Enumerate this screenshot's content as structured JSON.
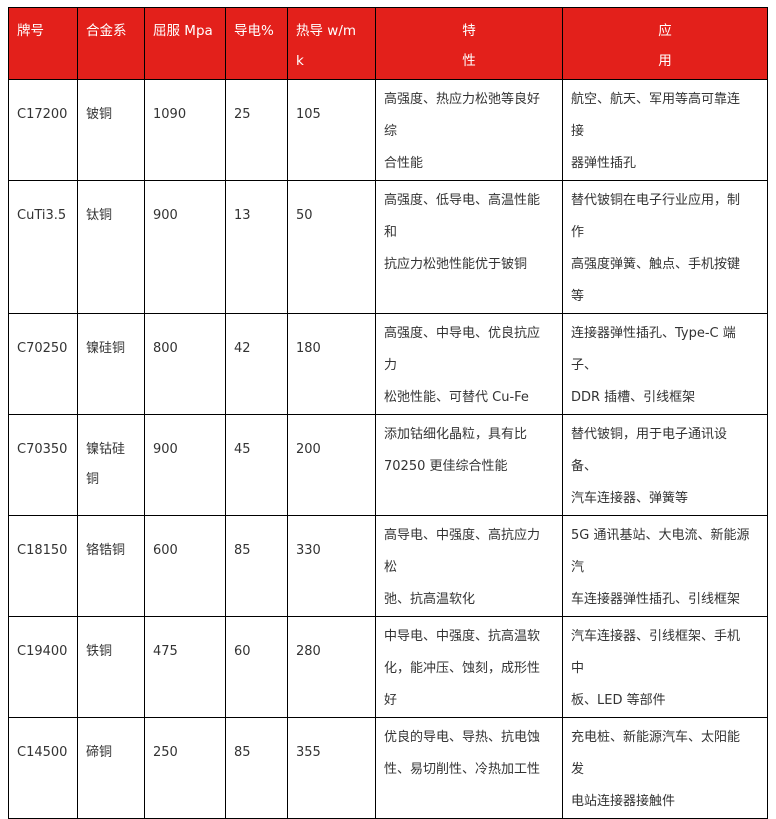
{
  "table": {
    "headers": [
      [
        "牌号"
      ],
      [
        "合金系"
      ],
      [
        "屈服  Mpa"
      ],
      [
        "导电%"
      ],
      [
        "热导   w/m",
        "k"
      ],
      [
        "特",
        "性"
      ],
      [
        "应",
        "用"
      ]
    ],
    "header_color": "#e3201b",
    "rows": [
      {
        "grade": "C17200",
        "alloy": [
          "铍铜"
        ],
        "yield": "1090",
        "conductivity": "25",
        "thermal": "105",
        "properties": [
          "高强度、热应力松弛等良好",
          "综",
          "合性能"
        ],
        "applications": [
          "航空、航天、军用等高可靠连",
          "接",
          "器弹性插孔"
        ]
      },
      {
        "grade": "CuTi3.5",
        "alloy": [
          "钛铜"
        ],
        "yield": "900",
        "conductivity": "13",
        "thermal": "50",
        "properties": [
          "高强度、低导电、高温性能",
          "和",
          "抗应力松弛性能优于铍铜"
        ],
        "applications": [
          "替代铍铜在电子行业应用，制",
          "作",
          "高强度弹簧、触点、手机按键",
          "等"
        ]
      },
      {
        "grade": "C70250",
        "alloy": [
          "镍硅铜"
        ],
        "yield": "800",
        "conductivity": "42",
        "thermal": "180",
        "properties": [
          "高强度、中导电、优良抗应",
          "力",
          "松弛性能、可替代  Cu-Fe"
        ],
        "applications": [
          "连接器弹性插孔、Type-C 端",
          "子、",
          "DDR 插槽、引线框架"
        ]
      },
      {
        "grade": "C70350",
        "alloy": [
          "镍钴硅",
          "铜"
        ],
        "yield": "900",
        "conductivity": "45",
        "thermal": "200",
        "properties": [
          "添加钴细化晶粒，具有比",
          "70250 更佳综合性能"
        ],
        "applications": [
          "替代铍铜，用于电子通讯设",
          "备、",
          "汽车连接器、弹簧等"
        ]
      },
      {
        "grade": "C18150",
        "alloy": [
          "铬锆铜"
        ],
        "yield": "600",
        "conductivity": "85",
        "thermal": "330",
        "properties": [
          "高导电、中强度、高抗应力",
          "松",
          "弛、抗高温软化"
        ],
        "applications": [
          "5G 通讯基站、大电流、新能源",
          "汽",
          "车连接器弹性插孔、引线框架"
        ]
      },
      {
        "grade": "C19400",
        "alloy": [
          "铁铜"
        ],
        "yield": "475",
        "conductivity": "60",
        "thermal": "280",
        "properties": [
          "中导电、中强度、抗高温软",
          "化，能冲压、蚀刻，成形性",
          "好"
        ],
        "applications": [
          "汽车连接器、引线框架、手机",
          "中",
          "板、LED 等部件"
        ]
      },
      {
        "grade": "C14500",
        "alloy": [
          "碲铜"
        ],
        "yield": "250",
        "conductivity": "85",
        "thermal": "355",
        "properties": [
          "优良的导电、导热、抗电蚀",
          "性、易切削性、冷热加工性"
        ],
        "applications": [
          "充电桩、新能源汽车、太阳能",
          "发",
          "电站连接器接触件"
        ]
      }
    ]
  }
}
